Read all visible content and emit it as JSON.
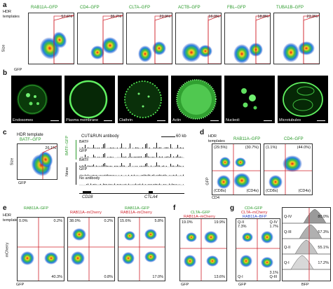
{
  "panels": {
    "a": {
      "label": "a",
      "hdr_label": "HDR\ntemplates",
      "y_label": "Size",
      "x_label": "GFP",
      "plots": [
        {
          "name": "RAB11A–GFP",
          "pct": "57.6%"
        },
        {
          "name": "CD4–GFP",
          "pct": "36.7%"
        },
        {
          "name": "CLTA–GFP",
          "pct": "23.9%"
        },
        {
          "name": "ACTB–GFP",
          "pct": "16.0%"
        },
        {
          "name": "FBL–GFP",
          "pct": "18.8%"
        },
        {
          "name": "TUBA1B–GFP",
          "pct": "23.2%"
        }
      ]
    },
    "b": {
      "label": "b",
      "images": [
        "Endosomes",
        "Plasma membrane",
        "Clathrin",
        "Actin",
        "Nucleoli",
        "Microtubules"
      ]
    },
    "c": {
      "label": "c",
      "hdr_label": "HDR template",
      "template": "BATF–GFP",
      "pct": "26.1%",
      "y_label": "Size",
      "x_label": "GFP",
      "track_title": "CUT&RUN antibody",
      "scale": "60 kb",
      "side_top": "BATF–GFP",
      "side_bottom": "None",
      "tracks": [
        "BATF",
        "GFP",
        "BATF",
        "GFP",
        "No antibody"
      ],
      "gene1": "CD28",
      "gene2": "CTLA4"
    },
    "d": {
      "label": "d",
      "hdr_label": "HDR\ntemplates",
      "left_title": "RAB11A–GFP",
      "right_title": "CD4–GFP",
      "left_pcts": [
        "(29.5%)",
        "(30.7%)"
      ],
      "right_pcts": [
        "(1.1%)",
        "(44.0%)"
      ],
      "left_bottom": [
        "(CD8s)",
        "(CD4s)"
      ],
      "right_bottom": [
        "(CD8s)",
        "(CD4s)"
      ],
      "y_label": "GFP",
      "x_label": "CD4"
    },
    "e": {
      "label": "e",
      "hdr_label": "HDR\ntemplates",
      "titles": [
        {
          "l1": "RAB11A–GFP",
          "l2": ""
        },
        {
          "l1": "",
          "l2": "RAB11A–mCherry"
        },
        {
          "l1": "RAB11A–GFP",
          "l2": "RAB11A–mCherry"
        }
      ],
      "quads": [
        [
          "0.0%",
          "0.2%",
          "",
          "40.3%"
        ],
        [
          "38.0%",
          "0.2%",
          "",
          "0.8%"
        ],
        [
          "15.6%",
          "5.8%",
          "",
          "17.0%"
        ]
      ],
      "y_label": "mCherry",
      "x_label": "GFP"
    },
    "f": {
      "label": "f",
      "title1": "CLTA–GFP",
      "title2": "RAB11A–mCherry",
      "quads": [
        "19.0%",
        "19.9%",
        "",
        "13.6%"
      ],
      "x_label": "GFP"
    },
    "g": {
      "label": "g",
      "title1": "CD4–GFP",
      "title2": "CLTA–mCherry",
      "title3": "RAB11A–BFP",
      "quad_labels": [
        "Q-II",
        "Q-IV",
        "Q-I",
        "Q-III"
      ],
      "quads": [
        "7.3%",
        "1.7%",
        "3.1%",
        "7.3%"
      ],
      "x_label": "GFP",
      "hist_labels": [
        "Q-IV",
        "Q-III",
        "Q-II",
        "Q-I"
      ],
      "hist_pcts": [
        "80.0%",
        "57.3%",
        "55.1%",
        "17.2%"
      ],
      "hist_x": "BFP"
    }
  }
}
